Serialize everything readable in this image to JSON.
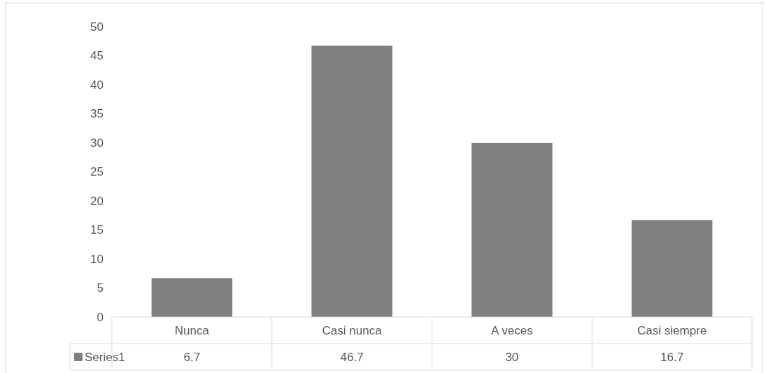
{
  "chart_data": {
    "type": "bar",
    "categories": [
      "Nunca",
      "Casi nunca",
      "A veces",
      "Casi siempre"
    ],
    "series": [
      {
        "name": "Series1",
        "color": "#7f7f7f",
        "values": [
          6.7,
          46.7,
          30,
          16.7
        ]
      }
    ],
    "ylim": [
      0,
      50
    ],
    "yticks": [
      0,
      5,
      10,
      15,
      20,
      25,
      30,
      35,
      40,
      45,
      50
    ],
    "data_labels": true
  }
}
